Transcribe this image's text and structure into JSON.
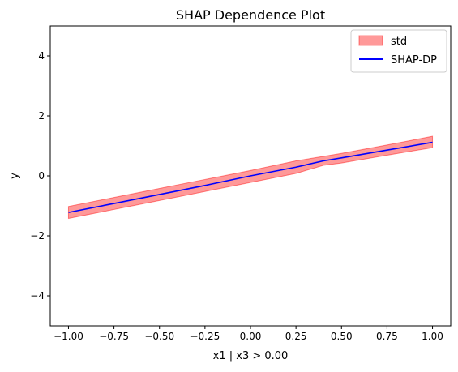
{
  "chart_data": {
    "type": "line",
    "title": "SHAP Dependence Plot",
    "xlabel": "x1 | x3 > 0.00",
    "ylabel": "y",
    "xlim": [
      -1.1,
      1.1
    ],
    "ylim": [
      -5,
      5
    ],
    "xticks": [
      -1.0,
      -0.75,
      -0.5,
      -0.25,
      0.0,
      0.25,
      0.5,
      0.75,
      1.0
    ],
    "xtick_labels": [
      "−1.00",
      "−0.75",
      "−0.50",
      "−0.25",
      "0.00",
      "0.25",
      "0.50",
      "0.75",
      "1.00"
    ],
    "yticks": [
      -4,
      -2,
      0,
      2,
      4
    ],
    "ytick_labels": [
      "−4",
      "−2",
      "0",
      "2",
      "4"
    ],
    "grid": false,
    "legend_position": "upper right",
    "x": [
      -1.0,
      -0.75,
      -0.5,
      -0.25,
      0.0,
      0.25,
      0.4,
      0.5,
      0.75,
      1.0
    ],
    "series": [
      {
        "name": "std",
        "kind": "band",
        "color": "#ff0000",
        "lower": [
          -1.42,
          -1.12,
          -0.82,
          -0.52,
          -0.22,
          0.08,
          0.35,
          0.43,
          0.69,
          0.94
        ],
        "upper": [
          -1.02,
          -0.72,
          -0.42,
          -0.12,
          0.18,
          0.5,
          0.65,
          0.75,
          1.03,
          1.32
        ]
      },
      {
        "name": "SHAP-DP",
        "kind": "line",
        "color": "#0000ff",
        "values": [
          -1.22,
          -0.92,
          -0.62,
          -0.32,
          0.0,
          0.29,
          0.5,
          0.6,
          0.86,
          1.12
        ]
      }
    ]
  }
}
